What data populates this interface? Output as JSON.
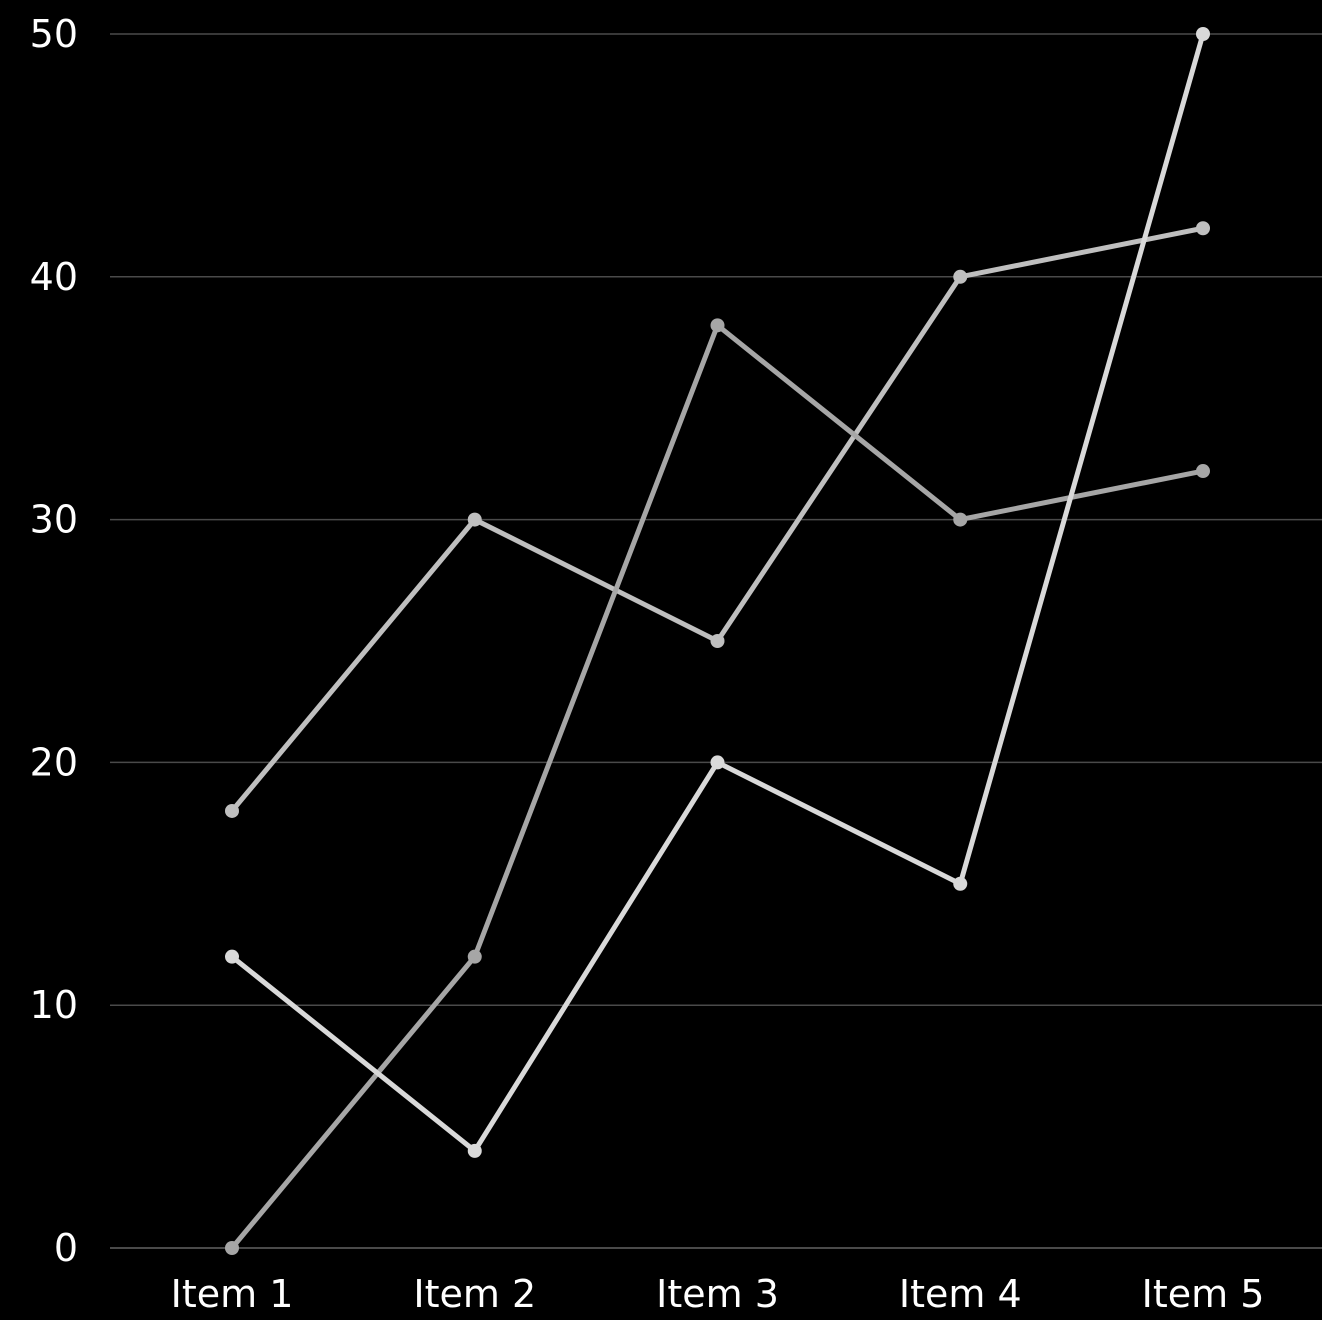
{
  "chart_data": {
    "type": "line",
    "categories": [
      "Item 1",
      "Item 2",
      "Item 3",
      "Item 4",
      "Item 5"
    ],
    "ylim": [
      0,
      50
    ],
    "yticks": [
      "0",
      "10",
      "20",
      "30",
      "40",
      "50"
    ],
    "grid": true,
    "background": "#000000",
    "gridColor": "#4a4a4a",
    "textColor": "#ffffff",
    "series": [
      {
        "values": [
          18,
          30,
          25,
          40,
          42
        ],
        "color": "#bfbfbf"
      },
      {
        "values": [
          0,
          12,
          38,
          30,
          32
        ],
        "color": "#a6a6a6"
      },
      {
        "values": [
          12,
          4,
          20,
          15,
          50
        ],
        "color": "#d9d9d9"
      }
    ]
  }
}
